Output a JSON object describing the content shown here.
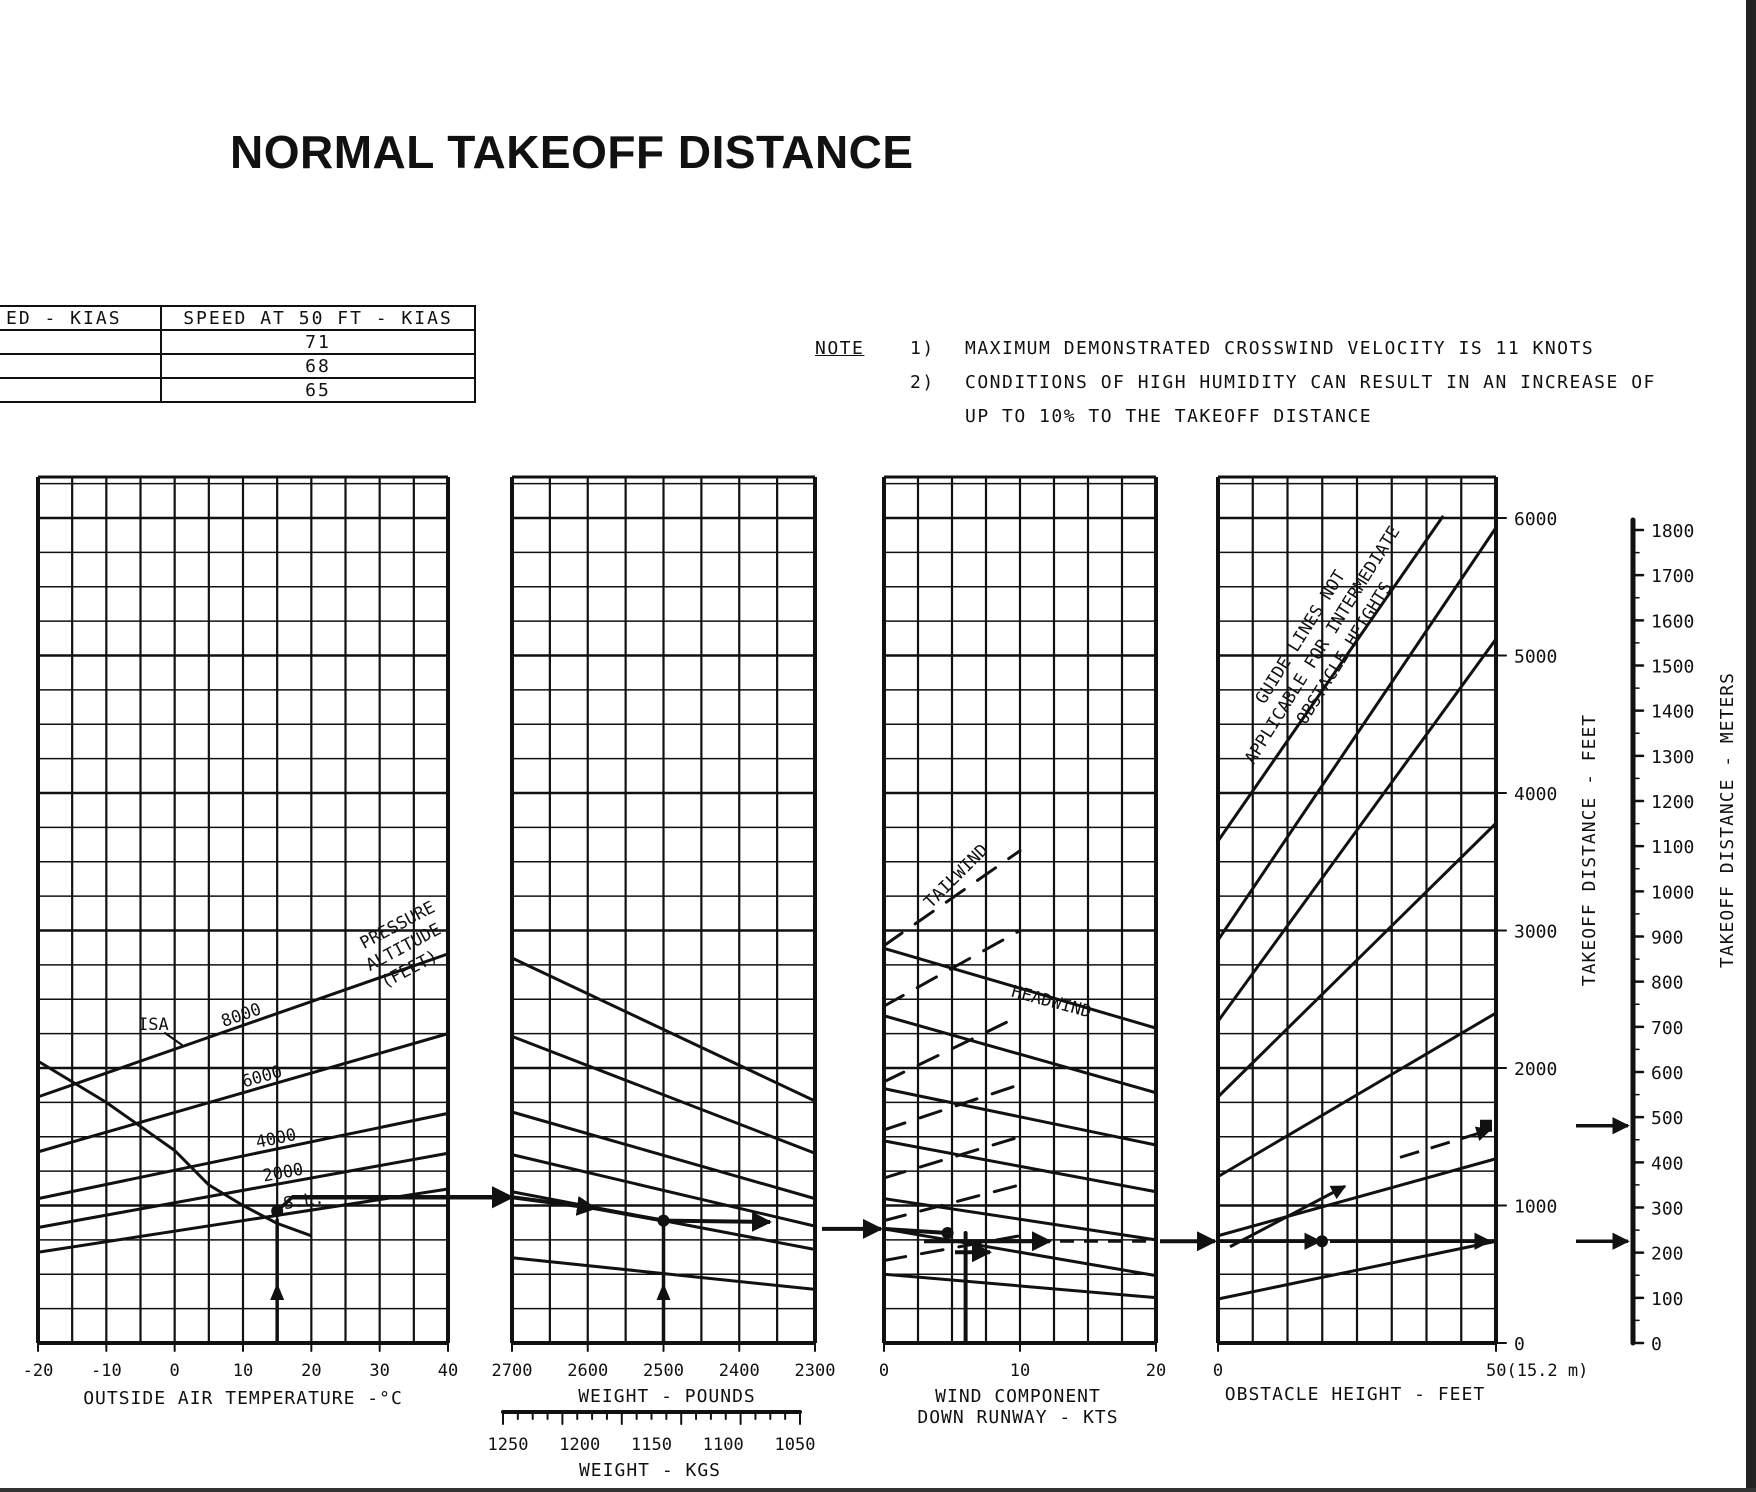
{
  "title": "NORMAL TAKEOFF DISTANCE",
  "speed_table": {
    "headers": [
      "ED - KIAS",
      "SPEED AT 50 FT - KIAS"
    ],
    "rows": [
      [
        "",
        "71"
      ],
      [
        "",
        "68"
      ],
      [
        "",
        "65"
      ]
    ]
  },
  "notes": {
    "header": "NOTE",
    "items": [
      {
        "num": "1)",
        "text": "MAXIMUM DEMONSTRATED CROSSWIND VELOCITY IS 11 KNOTS"
      },
      {
        "num": "2)",
        "text": "CONDITIONS OF HIGH HUMIDITY CAN RESULT IN AN INCREASE OF"
      },
      {
        "num": "",
        "text": "UP TO 10% TO THE TAKEOFF DISTANCE"
      }
    ]
  },
  "colors": {
    "ink": "#111111",
    "background": "#ffffff"
  },
  "chart_data": {
    "type": "line",
    "panels": [
      {
        "id": "temperature",
        "xlabel": "OUTSIDE AIR TEMPERATURE -°C",
        "xlim": [
          -20,
          40
        ],
        "x_ticks": [
          "-20",
          "-10",
          "0",
          "10",
          "20",
          "30",
          "40"
        ],
        "series_label": "PRESSURE ALTITUDE (FEET)",
        "series": [
          {
            "name": "8000",
            "x": [
              -20,
              40
            ],
            "y": [
              1790,
              2830
            ]
          },
          {
            "name": "6000",
            "x": [
              -20,
              40
            ],
            "y": [
              1390,
              2250
            ]
          },
          {
            "name": "4000",
            "x": [
              -20,
              40
            ],
            "y": [
              1050,
              1670
            ]
          },
          {
            "name": "2000",
            "x": [
              -20,
              40
            ],
            "y": [
              840,
              1380
            ]
          },
          {
            "name": "S.L.",
            "x": [
              -20,
              40
            ],
            "y": [
              660,
              1120
            ]
          }
        ],
        "isa_label": "ISA",
        "isa_curve": {
          "x": [
            -20,
            -10,
            0,
            5,
            10,
            15,
            20
          ],
          "y": [
            2050,
            1750,
            1400,
            1150,
            1000,
            870,
            780
          ]
        },
        "example_path": {
          "oat": 15,
          "y_at_alt": 960
        }
      },
      {
        "id": "weight",
        "xlabel": "WEIGHT - POUNDS",
        "xlim": [
          2700,
          2300
        ],
        "x_ticks": [
          "2700",
          "2600",
          "2500",
          "2400",
          "2300"
        ],
        "kg_label": "WEIGHT - KGS",
        "kg_ticks": [
          "1250",
          "1200",
          "1150",
          "1100",
          "1050"
        ],
        "guide_lines": [
          {
            "x": [
              2700,
              2300
            ],
            "y": [
              2800,
              1760
            ]
          },
          {
            "x": [
              2700,
              2300
            ],
            "y": [
              2230,
              1380
            ]
          },
          {
            "x": [
              2700,
              2300
            ],
            "y": [
              1680,
              1050
            ]
          },
          {
            "x": [
              2700,
              2300
            ],
            "y": [
              1370,
              850
            ]
          },
          {
            "x": [
              2700,
              2300
            ],
            "y": [
              1100,
              680
            ]
          },
          {
            "x": [
              2700,
              2300
            ],
            "y": [
              620,
              390
            ]
          }
        ],
        "example_weight": 2500
      },
      {
        "id": "wind",
        "xlabel": "WIND COMPONENT DOWN RUNWAY - KTS",
        "xlim": [
          0,
          20
        ],
        "x_ticks": [
          "0",
          "10",
          "20"
        ],
        "headwind_label": "HEADWIND",
        "tailwind_label": "TAILWIND",
        "headwind_lines": [
          {
            "x": [
              0,
              20
            ],
            "y": [
              2870,
              2290
            ]
          },
          {
            "x": [
              0,
              20
            ],
            "y": [
              2380,
              1820
            ]
          },
          {
            "x": [
              0,
              20
            ],
            "y": [
              1850,
              1440
            ]
          },
          {
            "x": [
              0,
              20
            ],
            "y": [
              1470,
              1100
            ]
          },
          {
            "x": [
              0,
              20
            ],
            "y": [
              1050,
              750
            ]
          },
          {
            "x": [
              0,
              20
            ],
            "y": [
              830,
              490
            ]
          },
          {
            "x": [
              0,
              20
            ],
            "y": [
              500,
              330
            ]
          }
        ],
        "tailwind_lines": [
          {
            "x": [
              0,
              10
            ],
            "y": [
              2890,
              3580
            ]
          },
          {
            "x": [
              0,
              10
            ],
            "y": [
              2450,
              3000
            ]
          },
          {
            "x": [
              0,
              10
            ],
            "y": [
              1900,
              2380
            ]
          },
          {
            "x": [
              0,
              10
            ],
            "y": [
              1550,
              1880
            ]
          },
          {
            "x": [
              0,
              10
            ],
            "y": [
              1200,
              1500
            ]
          },
          {
            "x": [
              0,
              10
            ],
            "y": [
              890,
              1150
            ]
          },
          {
            "x": [
              0,
              10
            ],
            "y": [
              600,
              780
            ]
          }
        ],
        "example_wind": 6
      },
      {
        "id": "obstacle",
        "xlabel": "OBSTACLE HEIGHT - FEET",
        "xlim": [
          0,
          50
        ],
        "x_ticks": [
          "0",
          "50(15.2 m)"
        ],
        "note": "GUIDE LINES NOT APPLICABLE FOR INTERMEDIATE OBSTACLE HEIGHTS",
        "guide_lines": [
          {
            "x": [
              0,
              50
            ],
            "y": [
              3650,
              6570
            ]
          },
          {
            "x": [
              0,
              50
            ],
            "y": [
              2930,
              5930
            ]
          },
          {
            "x": [
              0,
              50
            ],
            "y": [
              2340,
              5120
            ]
          },
          {
            "x": [
              0,
              50
            ],
            "y": [
              1790,
              3780
            ]
          },
          {
            "x": [
              0,
              50
            ],
            "y": [
              1210,
              2400
            ]
          },
          {
            "x": [
              0,
              50
            ],
            "y": [
              780,
              1340
            ]
          },
          {
            "x": [
              0,
              50
            ],
            "y": [
              320,
              740
            ]
          }
        ],
        "example_result_ft": [
          740,
          1580
        ]
      }
    ],
    "y_left": {
      "label": "TAKEOFF DISTANCE - FEET",
      "ticks": [
        "0",
        "1000",
        "2000",
        "3000",
        "4000",
        "5000",
        "6000"
      ],
      "ylim": [
        0,
        6000
      ]
    },
    "y_right": {
      "label": "TAKEOFF DISTANCE - METERS",
      "ticks": [
        "0",
        "100",
        "200",
        "300",
        "400",
        "500",
        "600",
        "700",
        "800",
        "900",
        "1000",
        "1100",
        "1200",
        "1300",
        "1400",
        "1500",
        "1600",
        "1700",
        "1800"
      ],
      "ylim": [
        0,
        1800
      ]
    },
    "grid": true
  }
}
